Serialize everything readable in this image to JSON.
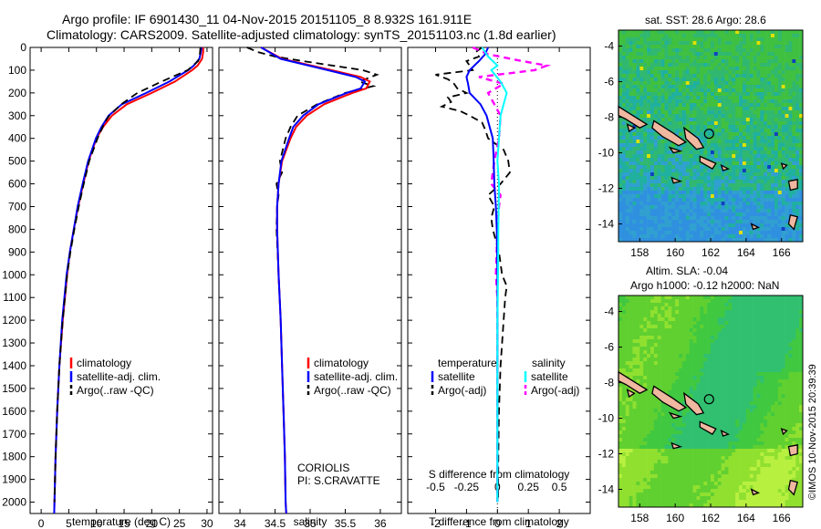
{
  "title_line1": "Argo profile: IF 6901430_11 04-Nov-2015 20151105_8 8.932S 161.911E",
  "title_line2": "Climatology: CARS2009. Satellite-adjusted climatology: synTS_20151103.nc (1.8d earlier)",
  "watermark": "©IMOS 10-Nov-2015 20:39:39",
  "colors": {
    "clim": "#ff0000",
    "sat": "#0000ff",
    "argo": "#000000",
    "sal_sat": "#00ffff",
    "sal_argo": "#ff00ff",
    "land": "#f0b8a0"
  },
  "chart_data": [
    {
      "type": "line",
      "name": "temperature",
      "xlabel": "temperature (deg C)",
      "ylabel": "depth",
      "xlim": [
        -2,
        31
      ],
      "ylim": [
        2050,
        0
      ],
      "xticks": [
        0,
        5,
        10,
        15,
        20,
        25,
        30
      ],
      "yticks": [
        0,
        100,
        200,
        300,
        400,
        500,
        600,
        700,
        800,
        900,
        1000,
        1100,
        1200,
        1300,
        1400,
        1500,
        1600,
        1700,
        1800,
        1900,
        2000
      ],
      "legend": [
        "climatology",
        "satellite-adj. clim.",
        "Argo(..raw -QC)"
      ],
      "series": [
        {
          "name": "climatology",
          "depth": [
            0,
            20,
            50,
            80,
            100,
            150,
            200,
            250,
            300,
            350,
            400,
            500,
            600,
            700,
            800,
            900,
            1000,
            1200,
            1400,
            1600,
            1800,
            2000,
            2050
          ],
          "values": [
            29.3,
            29.3,
            29.1,
            28.3,
            27.3,
            24.2,
            20.0,
            15.5,
            12.8,
            11.2,
            10.0,
            8.6,
            7.6,
            6.7,
            5.9,
            5.2,
            4.7,
            3.9,
            3.3,
            2.9,
            2.6,
            2.4,
            2.35
          ]
        },
        {
          "name": "satellite-adj. clim.",
          "depth": [
            0,
            20,
            50,
            80,
            100,
            150,
            200,
            250,
            300,
            350,
            400,
            500,
            600,
            700,
            800,
            900,
            1000,
            1200,
            1400,
            1600,
            1800,
            2000,
            2050
          ],
          "values": [
            29.0,
            28.9,
            28.6,
            27.6,
            26.6,
            23.2,
            19.0,
            14.6,
            12.2,
            10.9,
            9.9,
            8.5,
            7.5,
            6.6,
            5.9,
            5.2,
            4.6,
            3.8,
            3.3,
            2.9,
            2.6,
            2.4,
            2.35
          ]
        },
        {
          "name": "Argo(..raw -QC)",
          "depth": [
            0,
            30,
            60,
            100,
            150,
            200,
            250,
            300,
            330,
            400,
            500,
            600,
            700,
            800,
            900,
            1000,
            1200,
            1400,
            1600,
            1800,
            2000
          ],
          "values": [
            28.8,
            28.7,
            28.4,
            26.5,
            21.8,
            17.4,
            14.5,
            12.3,
            11.5,
            10.2,
            8.7,
            7.7,
            6.8,
            6.0,
            5.3,
            4.7,
            3.9,
            3.3,
            2.9,
            2.6,
            2.4
          ]
        }
      ]
    },
    {
      "type": "line",
      "name": "salinity",
      "xlabel": "salinity",
      "xlim": [
        33.7,
        36.3
      ],
      "ylim": [
        2050,
        0
      ],
      "xticks": [
        34,
        34.5,
        35,
        35.5,
        36
      ],
      "legend": [
        "climatology",
        "satellite-adj. clim.",
        "Argo(..raw -QC)"
      ],
      "annotation": [
        "CORIOLIS",
        "PI: S.CRAVATTE"
      ],
      "series": [
        {
          "name": "climatology",
          "depth": [
            0,
            50,
            100,
            130,
            150,
            180,
            200,
            250,
            300,
            350,
            400,
            500,
            600,
            700,
            800,
            1000,
            1200,
            1400,
            1600,
            1800,
            2000,
            2050
          ],
          "values": [
            34.3,
            34.6,
            35.3,
            35.72,
            35.85,
            35.8,
            35.6,
            35.2,
            34.95,
            34.8,
            34.72,
            34.6,
            34.55,
            34.53,
            34.53,
            34.55,
            34.58,
            34.6,
            34.62,
            34.64,
            34.65,
            34.66
          ]
        },
        {
          "name": "satellite-adj. clim.",
          "depth": [
            0,
            50,
            100,
            130,
            150,
            180,
            200,
            250,
            300,
            350,
            400,
            500,
            600,
            700,
            800,
            1000,
            1200,
            1400,
            1600,
            1800,
            2000,
            2050
          ],
          "values": [
            34.3,
            34.58,
            35.25,
            35.65,
            35.78,
            35.72,
            35.52,
            35.12,
            34.9,
            34.76,
            34.7,
            34.59,
            34.55,
            34.53,
            34.53,
            34.55,
            34.58,
            34.6,
            34.62,
            34.64,
            34.65,
            34.66
          ]
        },
        {
          "name": "Argo(..raw -QC)",
          "depth": [
            0,
            20,
            40,
            60,
            100,
            120,
            150,
            170,
            200,
            250,
            300,
            350,
            400,
            500,
            550,
            600,
            650,
            700,
            800,
            1000,
            1200,
            1400,
            1600,
            1800,
            2000
          ],
          "values": [
            34.1,
            34.25,
            34.5,
            34.9,
            35.75,
            35.95,
            35.7,
            35.9,
            35.5,
            35.1,
            34.82,
            34.72,
            34.65,
            34.57,
            34.6,
            34.52,
            34.55,
            34.53,
            34.52,
            34.55,
            34.58,
            34.6,
            34.62,
            34.64,
            34.65
          ]
        }
      ]
    },
    {
      "type": "line",
      "name": "differences",
      "xlabel": "T difference from climatology",
      "xlabel_top": "S difference from climatology",
      "xlim": [
        -2.9,
        3.0
      ],
      "ylim": [
        2050,
        0
      ],
      "xticks": [
        -2,
        -1,
        0,
        1,
        2
      ],
      "s_ticks_labels": [
        "-0.5",
        "-0.25",
        "0",
        "0.25",
        "0.5"
      ],
      "s_ticks_pos": [
        -2,
        -1,
        0,
        1,
        2
      ],
      "legend_titles": [
        "temperature",
        "salinity"
      ],
      "legend": [
        "satellite",
        "Argo(-adj)",
        "satellite",
        "Argo(-adj)"
      ],
      "series": [
        {
          "name": "T satellite",
          "depth": [
            0,
            30,
            60,
            100,
            130,
            160,
            200,
            250,
            300,
            400,
            500,
            600,
            700,
            800,
            1000,
            1200,
            1400,
            1600,
            1800,
            2000
          ],
          "values": [
            -0.3,
            -0.4,
            -0.6,
            -0.9,
            -1.0,
            -0.95,
            -0.9,
            -0.55,
            -0.35,
            -0.15,
            -0.12,
            -0.1,
            -0.05,
            -0.02,
            0,
            0,
            0,
            0,
            0,
            0
          ]
        },
        {
          "name": "T Argo(-adj)",
          "depth": [
            0,
            20,
            40,
            60,
            80,
            100,
            120,
            140,
            160,
            180,
            200,
            220,
            240,
            260,
            280,
            300,
            330,
            360,
            400,
            450,
            500,
            550,
            600,
            650,
            700,
            750,
            800,
            850,
            900,
            1000,
            1050,
            1100,
            1200,
            1400,
            1600,
            1800,
            2000
          ],
          "values": [
            -0.5,
            -0.7,
            -0.6,
            -1.0,
            -0.9,
            -0.8,
            -2.0,
            -1.6,
            -1.4,
            -1.3,
            -1.0,
            -1.6,
            -1.5,
            -1.8,
            -1.2,
            -0.9,
            -0.5,
            -0.4,
            -0.3,
            0.2,
            0.35,
            0.4,
            0.1,
            -0.3,
            -0.1,
            -0.2,
            -0.15,
            -0.05,
            0.05,
            0.15,
            0.3,
            0.25,
            0.2,
            0.1,
            0.05,
            0.03,
            0.02
          ]
        },
        {
          "name": "S satellite",
          "depth": [
            0,
            40,
            80,
            100,
            150,
            200,
            250,
            300,
            400,
            500,
            600,
            800,
            1000,
            1200,
            1400,
            1600,
            1800,
            2000
          ],
          "values": [
            -0.5,
            -0.3,
            0,
            -0.2,
            0.1,
            0.3,
            0.2,
            0.1,
            0.05,
            0.0,
            0.05,
            0.03,
            0.02,
            0.0,
            0.0,
            0.0,
            0.0,
            0.0
          ]
        },
        {
          "name": "S Argo(-adj)",
          "depth": [
            0,
            30,
            60,
            80,
            100,
            130,
            160,
            200,
            250,
            300,
            400,
            500,
            600,
            650,
            700,
            800,
            1000,
            1100,
            1200,
            1400,
            1600,
            1800,
            2000
          ],
          "values": [
            -0.8,
            -0.3,
            0.8,
            1.6,
            1.2,
            -0.6,
            0.2,
            -0.3,
            -0.1,
            0.1,
            0.05,
            -0.1,
            -0.2,
            0.1,
            0.05,
            0.0,
            -0.05,
            0.0,
            0.0,
            0.0,
            0.0,
            0.0,
            0.0
          ]
        }
      ]
    },
    {
      "type": "heatmap",
      "name": "sst_map",
      "title": "sat. SST: 28.6 Argo: 28.6",
      "xticks": [
        158,
        160,
        162,
        164,
        166
      ],
      "yticks": [
        -4,
        -6,
        -8,
        -10,
        -12,
        -14
      ],
      "xlim": [
        156.8,
        167.2
      ],
      "ylim": [
        -15.0,
        -3.1
      ],
      "marker": {
        "lon": 161.911,
        "lat": -8.932
      }
    },
    {
      "type": "heatmap",
      "name": "sla_map",
      "title_line1": "Altim. SLA: -0.04",
      "title_line2": "Argo h1000: -0.12 h2000: NaN",
      "xticks": [
        158,
        160,
        162,
        164,
        166
      ],
      "yticks": [
        -4,
        -6,
        -8,
        -10,
        -12,
        -14
      ],
      "xlim": [
        156.8,
        167.2
      ],
      "ylim": [
        -15.0,
        -3.1
      ],
      "marker": {
        "lon": 161.911,
        "lat": -8.932
      }
    }
  ]
}
